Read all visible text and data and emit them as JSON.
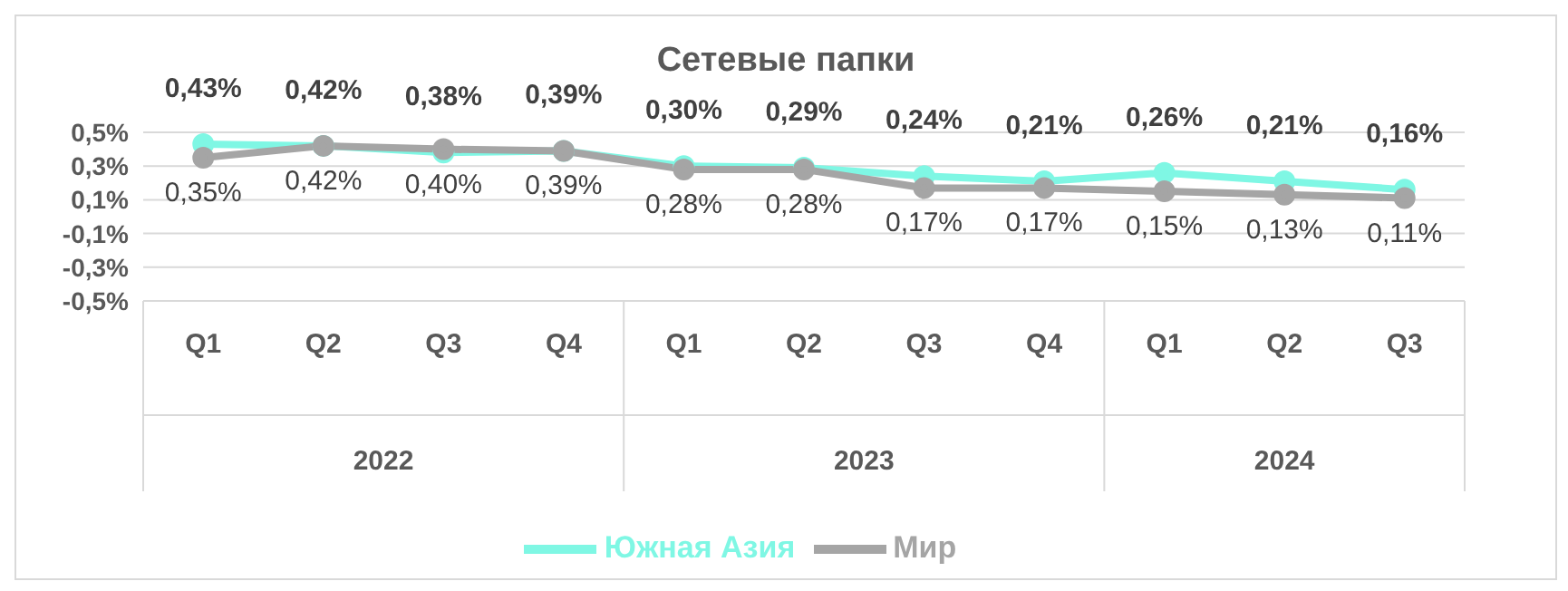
{
  "chart_data": {
    "type": "line",
    "title": "Сетевые папки",
    "categories": [
      "Q1",
      "Q2",
      "Q3",
      "Q4",
      "Q1",
      "Q2",
      "Q3",
      "Q4",
      "Q1",
      "Q2",
      "Q3"
    ],
    "annotations": [
      "2022",
      "2023",
      "2024"
    ],
    "series": [
      {
        "name": "Южная Азия",
        "color": "#7ff7e4",
        "values": [
          0.43,
          0.42,
          0.38,
          0.39,
          0.3,
          0.29,
          0.24,
          0.21,
          0.26,
          0.21,
          0.16
        ],
        "value_labels": [
          "0,43%",
          "0,42%",
          "0,38%",
          "0,39%",
          "0,30%",
          "0,29%",
          "0,24%",
          "0,21%",
          "0,26%",
          "0,21%",
          "0,16%"
        ]
      },
      {
        "name": "Мир",
        "color": "#a5a5a5",
        "values": [
          0.35,
          0.42,
          0.4,
          0.39,
          0.28,
          0.28,
          0.17,
          0.17,
          0.15,
          0.13,
          0.11
        ],
        "value_labels": [
          "0,35%",
          "0,42%",
          "0,40%",
          "0,39%",
          "0,28%",
          "0,28%",
          "0,17%",
          "0,17%",
          "0,15%",
          "0,13%",
          "0,11%"
        ]
      }
    ],
    "ylim": [
      -0.5,
      0.5
    ],
    "yticks": [
      {
        "value": -0.5,
        "label": "-0,5%"
      },
      {
        "value": -0.3,
        "label": "-0,3%"
      },
      {
        "value": -0.1,
        "label": "-0,1%"
      },
      {
        "value": 0.1,
        "label": "0,1%"
      },
      {
        "value": 0.3,
        "label": "0,3%"
      },
      {
        "value": 0.5,
        "label": "0,5%"
      }
    ],
    "grid": "y",
    "legend": "bottom",
    "marker": "circle",
    "line_style": "solid"
  }
}
